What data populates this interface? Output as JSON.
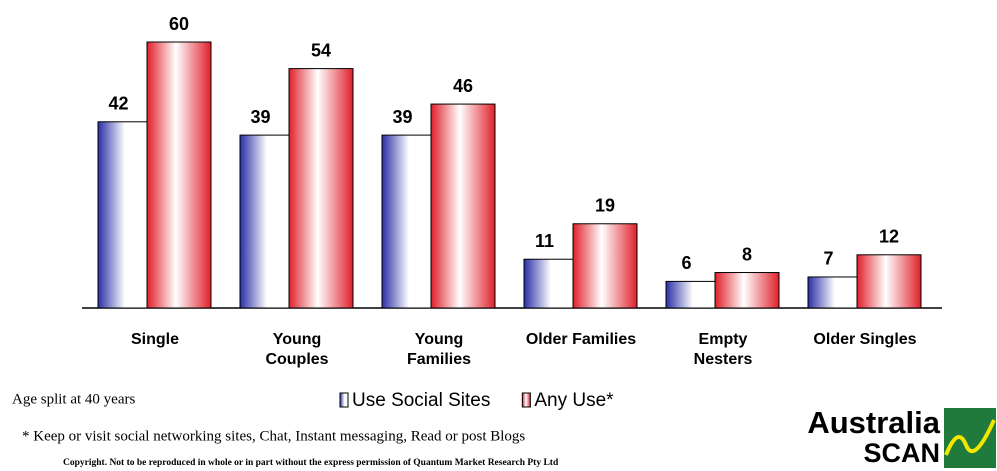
{
  "chart_data": {
    "type": "bar",
    "categories": [
      "Single",
      "Young\nCouples",
      "Young\nFamilies",
      "Older Families",
      "Empty\nNesters",
      "Older Singles"
    ],
    "series": [
      {
        "name": "Use Social Sites",
        "color": "#2a2fa6",
        "values": [
          42,
          39,
          39,
          11,
          6,
          7
        ]
      },
      {
        "name": "Any Use*",
        "color": "#e0202a",
        "values": [
          60,
          54,
          46,
          19,
          8,
          12
        ]
      }
    ],
    "notes": {
      "age": "Age split at 40 years",
      "footnote": "* Keep or visit social networking sites, Chat, Instant messaging, Read or post Blogs",
      "copyright": "Copyright. Not to be reproduced in whole or in part without the express permission of Quantum Market Research Pty Ltd"
    },
    "logo": {
      "line1": "Australia",
      "line2": "SCAN"
    }
  }
}
